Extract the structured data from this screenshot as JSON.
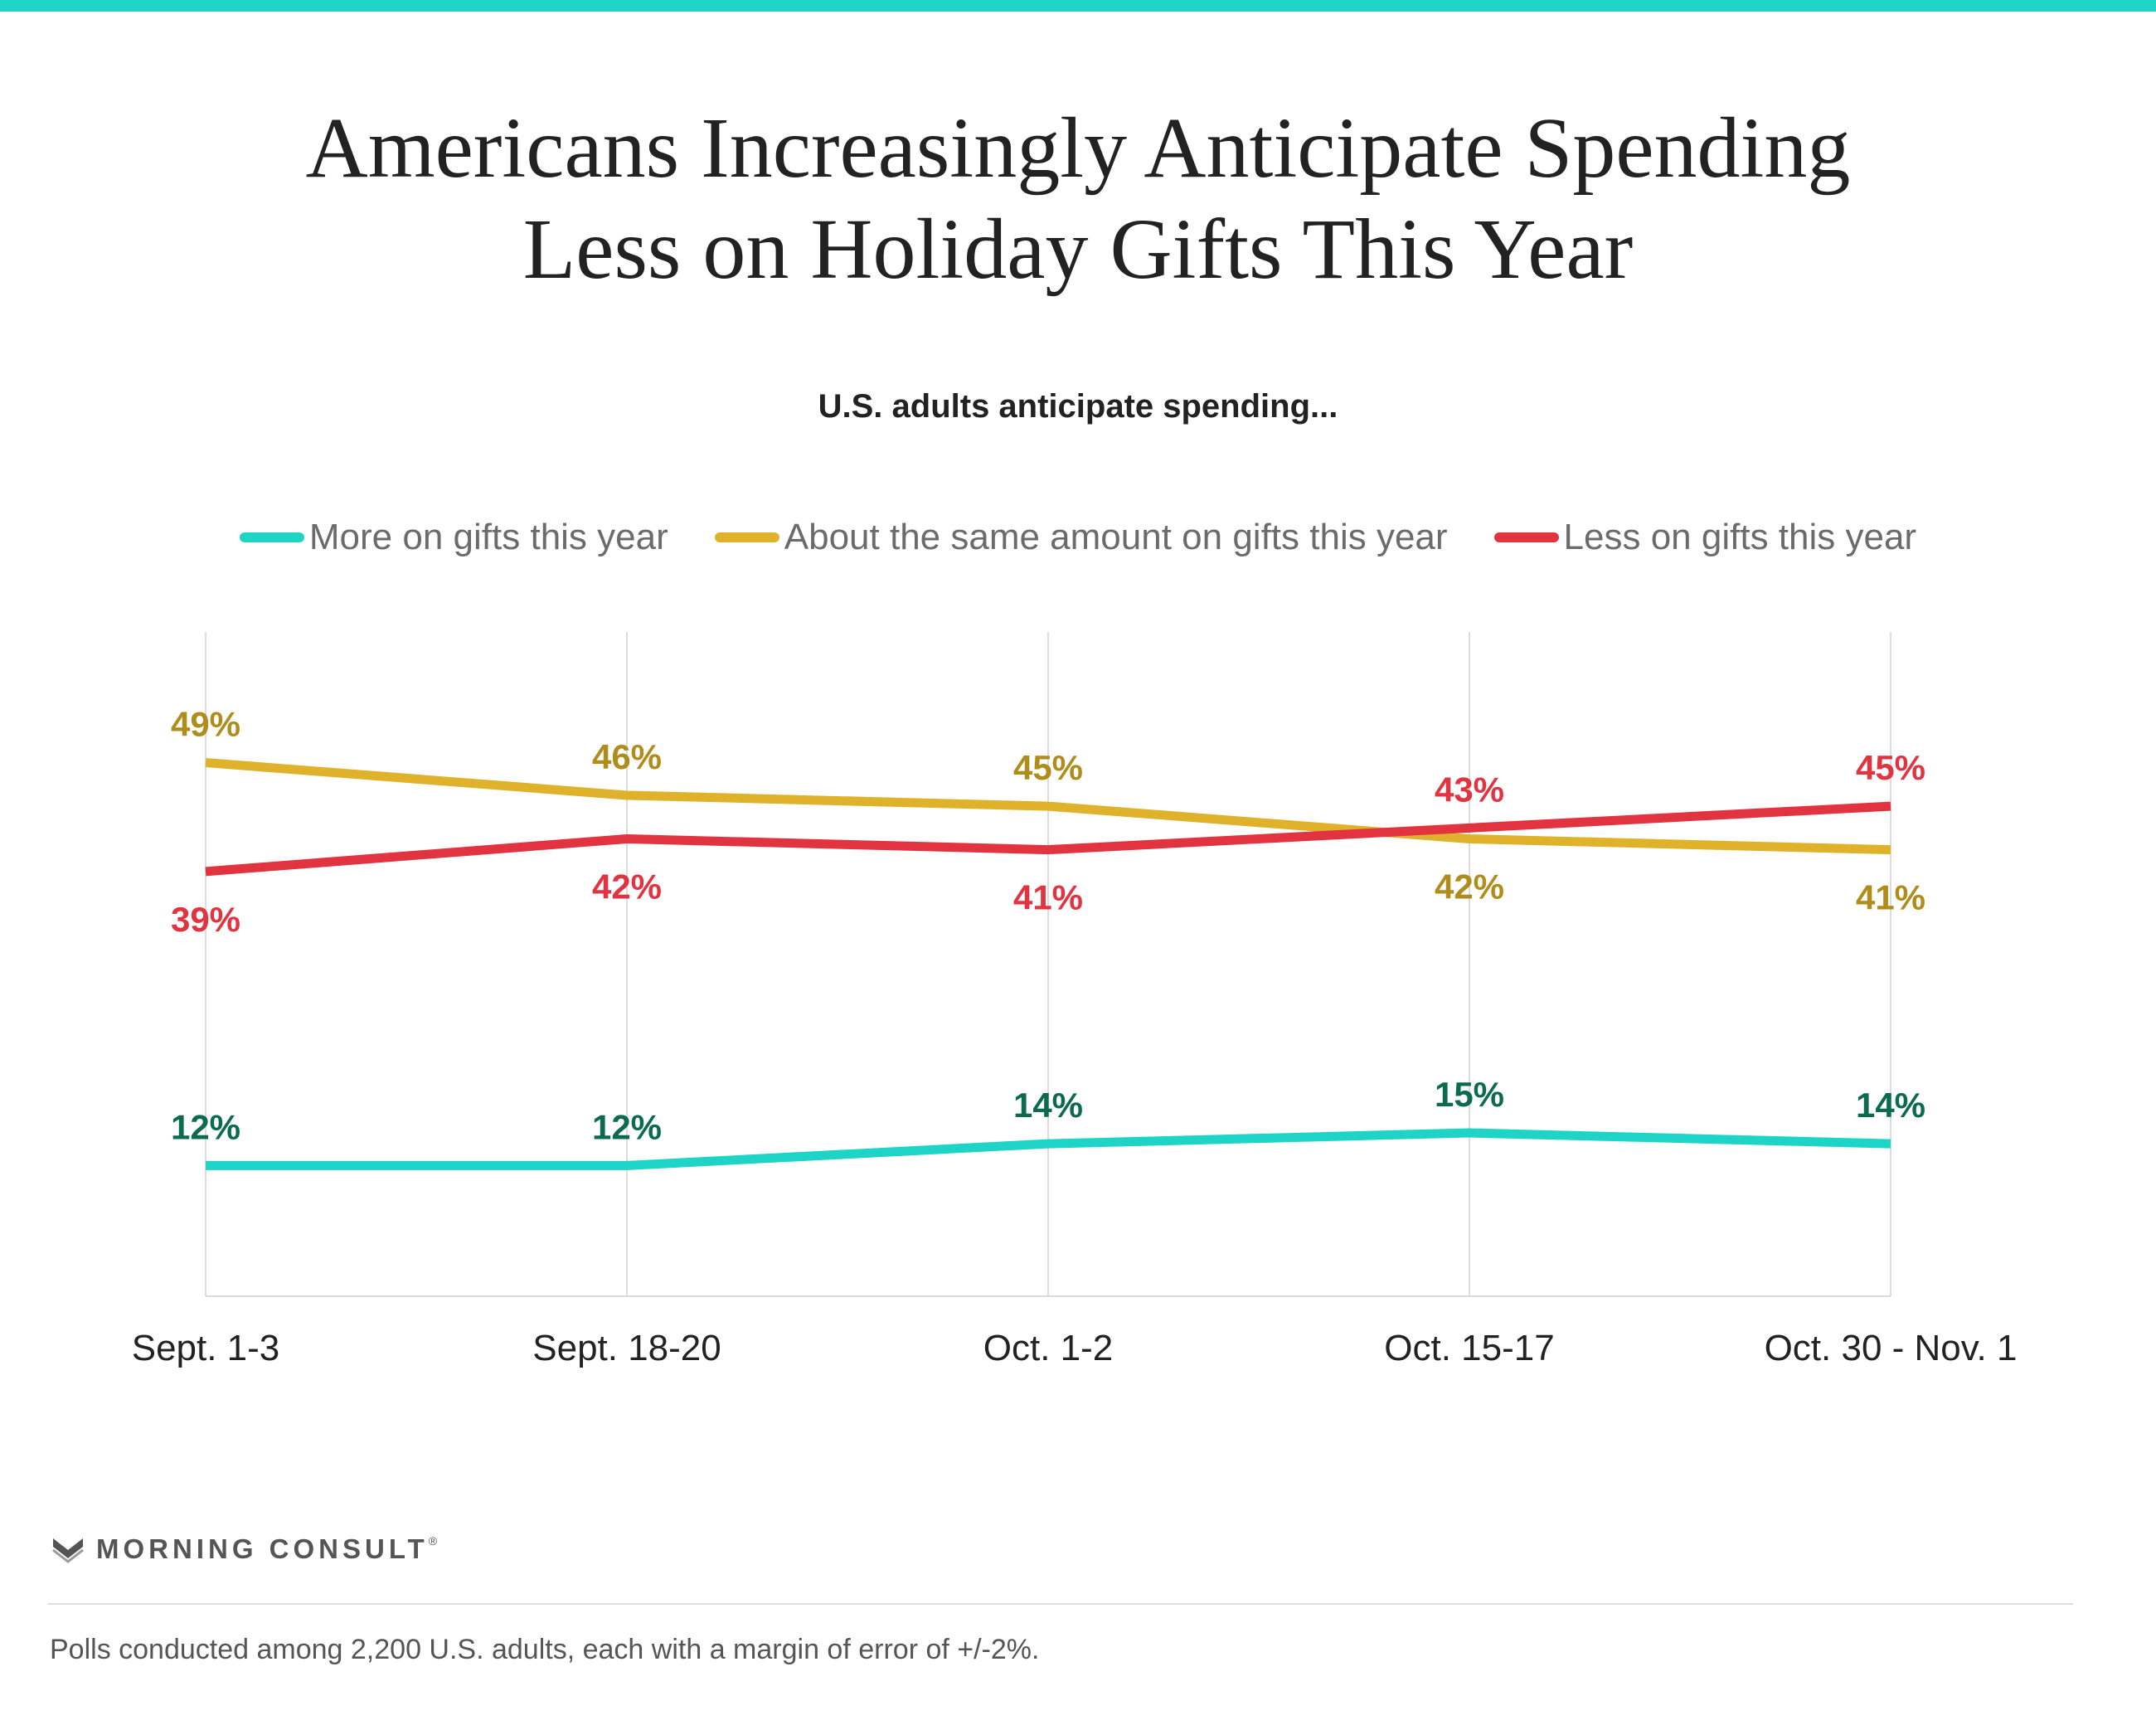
{
  "header": {
    "title_line1": "Americans Increasingly Anticipate Spending",
    "title_line2": "Less on Holiday Gifts This Year",
    "subtitle": "U.S. adults anticipate spending..."
  },
  "colors": {
    "accent_bar": "#1ed4c7",
    "more": "#1ed4c7",
    "more_label": "#0c6a4f",
    "same": "#e0b22b",
    "same_label": "#b08c1a",
    "less": "#e23340",
    "less_label": "#e23340"
  },
  "chart_data": {
    "type": "line",
    "categories": [
      "Sept. 1-3",
      "Sept. 18-20",
      "Oct. 1-2",
      "Oct. 15-17",
      "Oct. 30 - Nov. 1"
    ],
    "series": [
      {
        "key": "more",
        "name": "More on gifts this year",
        "values": [
          12,
          12,
          14,
          15,
          14
        ],
        "labels": [
          "12%",
          "12%",
          "14%",
          "15%",
          "14%"
        ]
      },
      {
        "key": "same",
        "name": "About the same amount on gifts this year",
        "values": [
          49,
          46,
          45,
          42,
          41
        ],
        "labels": [
          "49%",
          "46%",
          "45%",
          "42%",
          "41%"
        ]
      },
      {
        "key": "less",
        "name": "Less on gifts this year",
        "values": [
          39,
          42,
          41,
          43,
          45
        ],
        "labels": [
          "39%",
          "42%",
          "41%",
          "43%",
          "45%"
        ]
      }
    ],
    "ylim": [
      0,
      61
    ],
    "grid": "vertical",
    "legend_position": "top-center"
  },
  "footer": {
    "brand": "MORNING CONSULT",
    "note": "Polls conducted among 2,200 U.S. adults, each with a margin of error of +/-2%."
  }
}
